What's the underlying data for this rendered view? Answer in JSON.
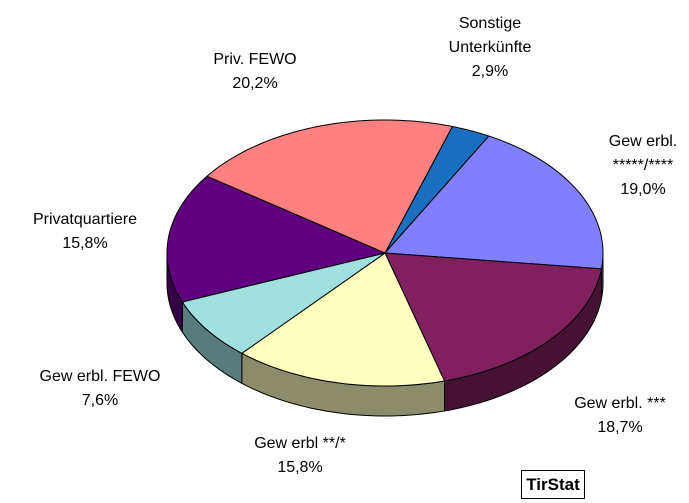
{
  "chart_data": {
    "type": "pie",
    "categories": [
      "Sonstige Unterkünfte",
      "Gew erbl. *****/****",
      "Gew erbl. ***",
      "Gew erbl **/*",
      "Gew erbl. FEWO",
      "Privatquartiere",
      "Priv. FEWO"
    ],
    "values": [
      2.9,
      19,
      18.7,
      15.8,
      7.6,
      15.8,
      20.2
    ],
    "value_labels": [
      "2,9%",
      "19,0%",
      "18,7%",
      "15,8%",
      "7,6%",
      "15,8%",
      "20,2%"
    ],
    "colors": [
      "#1a6fc0",
      "#8080ff",
      "#80205f",
      "#ffffc0",
      "#a0e0e0",
      "#600080",
      "#ff8080"
    ],
    "source": "TirStat"
  }
}
